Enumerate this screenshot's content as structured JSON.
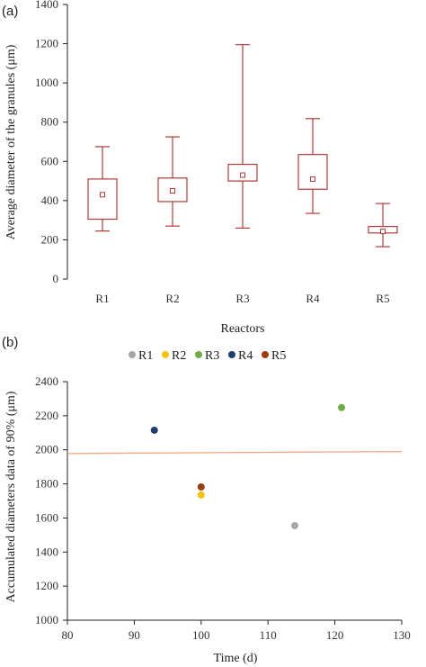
{
  "chart_data": [
    {
      "panel_label": "(a)",
      "type": "box",
      "xlabel": "Reactors",
      "ylabel": "Average diameter of the granules (μm)",
      "ylim": [
        0,
        1400
      ],
      "yticks": [
        0,
        200,
        400,
        600,
        800,
        1000,
        1200,
        1400
      ],
      "categories": [
        "R1",
        "R2",
        "R3",
        "R4",
        "R5"
      ],
      "boxes": [
        {
          "name": "R1",
          "min": 245,
          "q1": 305,
          "median": 430,
          "q3": 510,
          "max": 675
        },
        {
          "name": "R2",
          "min": 270,
          "q1": 395,
          "median": 450,
          "q3": 515,
          "max": 725
        },
        {
          "name": "R3",
          "min": 260,
          "q1": 500,
          "median": 530,
          "q3": 585,
          "max": 1195
        },
        {
          "name": "R4",
          "min": 335,
          "q1": 458,
          "median": 510,
          "q3": 635,
          "max": 818
        },
        {
          "name": "R5",
          "min": 165,
          "q1": 235,
          "median": 243,
          "q3": 268,
          "max": 385
        }
      ],
      "color": "#b03a3a",
      "grid": false
    },
    {
      "panel_label": "(b)",
      "type": "scatter",
      "xlabel": "Time (d)",
      "ylabel": "Accumulated diameters data of 90% (μm)",
      "xlim": [
        80,
        130
      ],
      "ylim": [
        1000,
        2400
      ],
      "xticks": [
        80,
        90,
        100,
        110,
        120,
        130
      ],
      "yticks": [
        1000,
        1200,
        1400,
        1600,
        1800,
        2000,
        2200,
        2400
      ],
      "legend_position": "top",
      "series": [
        {
          "name": "R1",
          "color": "#a6a6a6",
          "x": 114,
          "y": 1555
        },
        {
          "name": "R2",
          "color": "#f2c40f",
          "x": 100,
          "y": 1735
        },
        {
          "name": "R3",
          "color": "#70ad47",
          "x": 121,
          "y": 2248
        },
        {
          "name": "R4",
          "color": "#1f3d6e",
          "x": 93,
          "y": 2115
        },
        {
          "name": "R5",
          "color": "#9c3d10",
          "x": 100,
          "y": 1782
        }
      ],
      "trendline": {
        "color": "#f4a582",
        "x": [
          80,
          130
        ],
        "y": [
          1978,
          1990
        ]
      },
      "grid": false
    }
  ]
}
